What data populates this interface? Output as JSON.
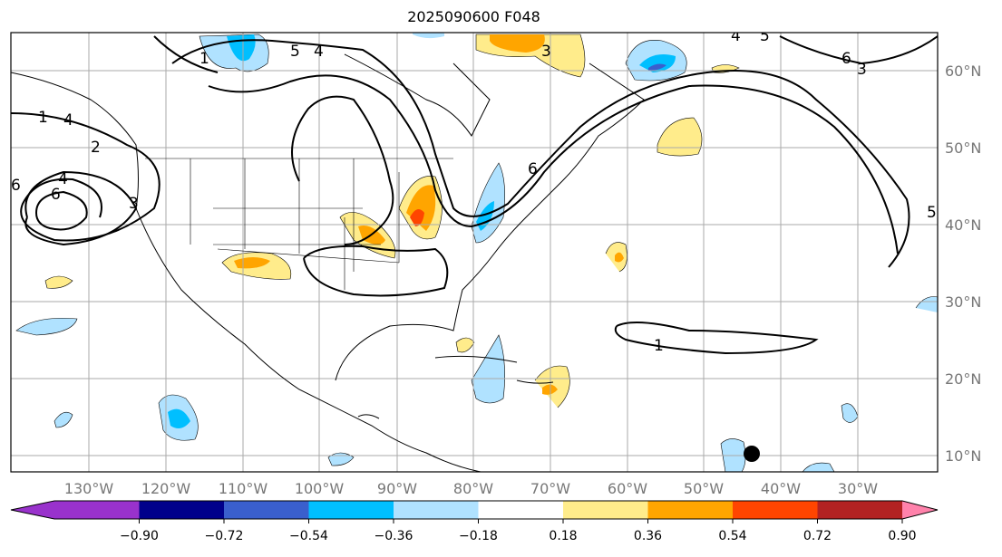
{
  "title": "2025090600 F048",
  "lat_labels": [
    "60°N",
    "50°N",
    "40°N",
    "30°N",
    "20°N",
    "10°N"
  ],
  "lon_labels": [
    "130°W",
    "120°W",
    "110°W",
    "100°W",
    "90°W",
    "80°W",
    "70°W",
    "60°W",
    "50°W",
    "40°W",
    "30°W"
  ],
  "contour_labels": [
    "1",
    "4",
    "2",
    "4",
    "6",
    "3",
    "5",
    "4",
    "6",
    "3",
    "1",
    "5",
    "4",
    "3",
    "6",
    "5",
    "6",
    "1"
  ],
  "colorbar": {
    "ticks": [
      "−0.90",
      "−0.72",
      "−0.54",
      "−0.36",
      "−0.18",
      "0.18",
      "0.36",
      "0.54",
      "0.72",
      "0.90"
    ],
    "colors": [
      "#9932cc",
      "#00008b",
      "#3a5fcd",
      "#00bfff",
      "#b0e2ff",
      "#ffffff",
      "#ffec8b",
      "#ffa500",
      "#ff4500",
      "#b22222",
      "#ff82ab"
    ]
  }
}
